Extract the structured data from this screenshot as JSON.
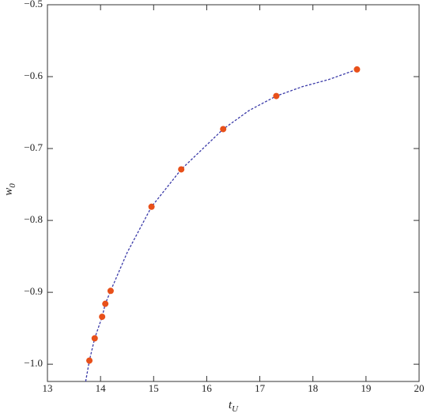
{
  "chart_data": {
    "type": "scatter",
    "xlabel": {
      "base": "t",
      "sub": "U"
    },
    "ylabel": {
      "base": "w",
      "sub": "0"
    },
    "xlim": [
      13,
      20
    ],
    "ylim": [
      -1.024,
      -0.5
    ],
    "xticks": [
      13,
      14,
      15,
      16,
      17,
      18,
      19,
      20
    ],
    "yticks": [
      {
        "value": -1.0,
        "label": "−1.0"
      },
      {
        "value": -0.9,
        "label": "−0.9"
      },
      {
        "value": -0.8,
        "label": "−0.8"
      },
      {
        "value": -0.7,
        "label": "−0.7"
      },
      {
        "value": -0.6,
        "label": "−0.6"
      },
      {
        "value": -0.5,
        "label": "−0.5"
      }
    ],
    "series": [
      {
        "kind": "points",
        "color": "#e8501a",
        "x": [
          13.79,
          13.89,
          14.03,
          14.09,
          14.19,
          14.96,
          15.52,
          16.31,
          17.31,
          18.83
        ],
        "values": [
          -0.995,
          -0.964,
          -0.934,
          -0.916,
          -0.898,
          -0.781,
          -0.729,
          -0.673,
          -0.627,
          -0.59
        ]
      },
      {
        "kind": "dashed-line",
        "color": "#3a3aa8",
        "x": [
          13.72,
          13.79,
          13.89,
          14.03,
          14.09,
          14.19,
          14.5,
          14.96,
          15.52,
          16.0,
          16.31,
          16.8,
          17.31,
          17.8,
          18.3,
          18.83
        ],
        "values": [
          -1.024,
          -0.995,
          -0.964,
          -0.934,
          -0.916,
          -0.898,
          -0.845,
          -0.781,
          -0.729,
          -0.695,
          -0.673,
          -0.647,
          -0.627,
          -0.614,
          -0.604,
          -0.59
        ]
      }
    ]
  }
}
